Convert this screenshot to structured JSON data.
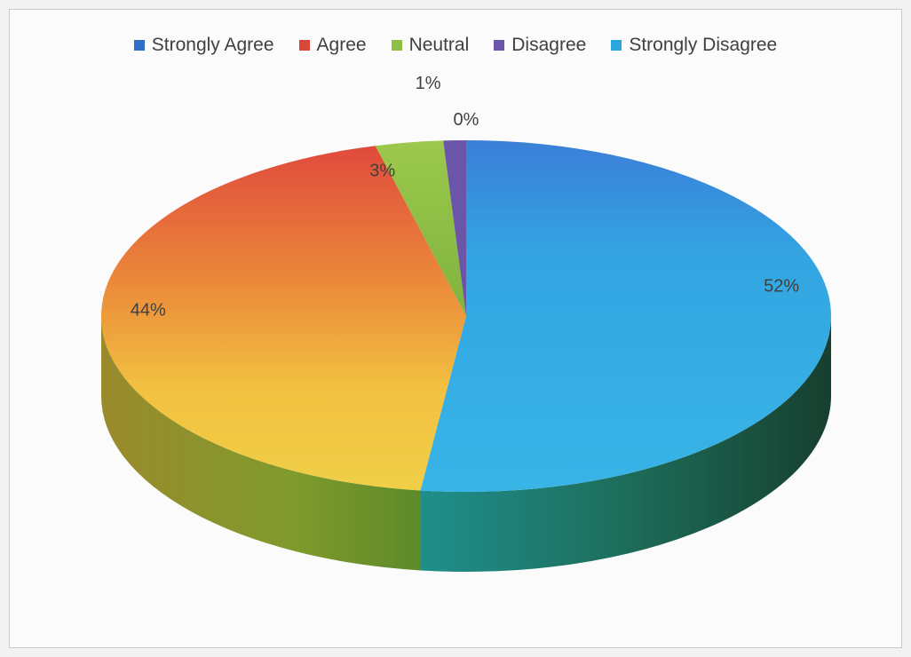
{
  "chart_data": {
    "type": "pie",
    "style": "3d",
    "categories": [
      "Strongly Agree",
      "Agree",
      "Neutral",
      "Disagree",
      "Strongly Disagree"
    ],
    "values": [
      52,
      44,
      3,
      1,
      0
    ],
    "data_labels": [
      "52%",
      "44%",
      "3%",
      "1%",
      "0%"
    ],
    "colors": [
      "#3a8fe0",
      "#e35a3a",
      "#98c24a",
      "#6a55a8",
      "#38b0e3"
    ],
    "title": "",
    "legend_position": "top"
  }
}
